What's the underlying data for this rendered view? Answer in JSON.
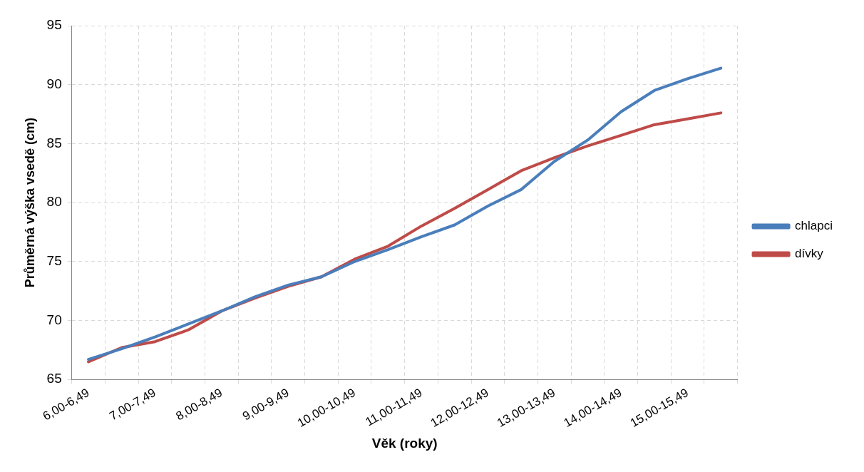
{
  "chart_data": {
    "type": "line",
    "xlabel": "Věk (roky)",
    "ylabel": "Průměrná výška vsedě (cm)",
    "categories": [
      "6,00-6,49",
      null,
      "7,00-7,49",
      null,
      "8,00-8,49",
      null,
      "9,00-9,49",
      null,
      "10,00-10,49",
      null,
      "11,00-11,49",
      null,
      "12,00-12,49",
      null,
      "13,00-13,49",
      null,
      "14,00-14,49",
      null,
      "15,00-15,49",
      null
    ],
    "series": [
      {
        "name": "chlapci",
        "color": "#4a7ebb",
        "values": [
          66.7,
          67.6,
          68.6,
          69.7,
          70.8,
          72.0,
          73.0,
          73.7,
          75.0,
          76.0,
          77.1,
          78.1,
          79.7,
          81.1,
          83.5,
          85.3,
          87.7,
          89.5,
          90.5,
          91.4
        ]
      },
      {
        "name": "dívky",
        "color": "#be4b48",
        "values": [
          66.5,
          67.7,
          68.2,
          69.2,
          70.8,
          71.9,
          72.9,
          73.7,
          75.2,
          76.3,
          78.0,
          79.5,
          81.1,
          82.7,
          83.8,
          84.8,
          85.7,
          86.6,
          87.1,
          87.6
        ]
      }
    ],
    "ylim": [
      65,
      95
    ],
    "yticks": [
      65,
      70,
      75,
      80,
      85,
      90,
      95
    ],
    "grid": true,
    "legend": "right",
    "marker": "none",
    "line_style": "solid"
  }
}
